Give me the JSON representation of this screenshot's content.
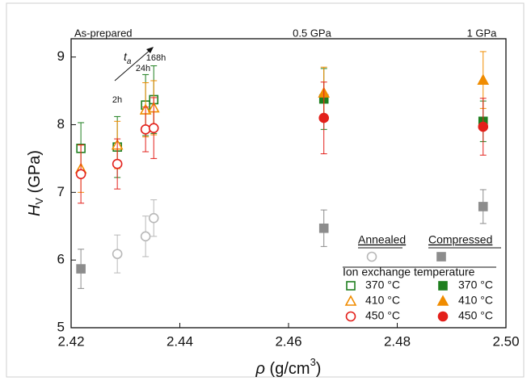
{
  "chart_data": {
    "type": "scatter",
    "x_label": {
      "symbol": "ρ",
      "text": " (g/cm",
      "sup": "3",
      "end": ")"
    },
    "y_label": {
      "symbol": "H",
      "sub": "V",
      "text": " (GPa)"
    },
    "xlim": [
      2.42,
      2.5
    ],
    "ylim": [
      5,
      9.27
    ],
    "xticks": [
      2.42,
      2.44,
      2.46,
      2.48,
      {
        "value": 2.5,
        "label": "2.50"
      }
    ],
    "yticks": [
      5,
      6,
      7,
      8,
      9
    ],
    "annotations": [
      "As-prepared",
      "0.5 GPa",
      "1 GPa",
      "2h",
      "24h",
      "168h"
    ],
    "arrow_label": {
      "text": "t",
      "sub": "a"
    },
    "legend_title": "Ion exchange temperature",
    "series": [
      {
        "name": "Annealed",
        "color": "#b8b8b8",
        "marker": "circle",
        "filled": false,
        "x": [
          2.4285,
          2.4337,
          2.4352
        ],
        "values": [
          6.09,
          6.35,
          6.62
        ],
        "errors": [
          0.28,
          0.3,
          0.27
        ]
      },
      {
        "name": "Compressed",
        "color": "#8c8c8c",
        "marker": "square",
        "filled": true,
        "x": [
          2.4218,
          2.4665,
          2.4958
        ],
        "values": [
          5.87,
          6.47,
          6.79
        ],
        "errors": [
          0.29,
          0.27,
          0.25
        ]
      },
      {
        "name": "370 °C",
        "color": "#1f7f1f",
        "marker": "square",
        "filled": false,
        "x": [
          2.4218,
          2.4285,
          2.4337,
          2.4352
        ],
        "values": [
          7.65,
          7.67,
          8.29,
          8.37
        ],
        "errors": [
          0.38,
          0.45,
          0.45,
          0.5
        ]
      },
      {
        "name": "410 °C",
        "color": "#f08c00",
        "marker": "triangle",
        "filled": false,
        "x": [
          2.4218,
          2.4285,
          2.4337,
          2.4352
        ],
        "values": [
          7.35,
          7.7,
          8.22,
          8.25
        ],
        "errors": [
          0.35,
          0.35,
          0.4,
          0.4
        ]
      },
      {
        "name": "450 °C",
        "color": "#e3201b",
        "marker": "circle",
        "filled": false,
        "x": [
          2.4218,
          2.4285,
          2.4337,
          2.4352
        ],
        "values": [
          7.27,
          7.42,
          7.93,
          7.95
        ],
        "errors": [
          0.43,
          0.37,
          0.33,
          0.45
        ]
      },
      {
        "name": "370 °C",
        "color": "#1f7f1f",
        "marker": "square",
        "filled": true,
        "x": [
          2.4665,
          2.4958
        ],
        "values": [
          8.38,
          8.05
        ],
        "errors": [
          0.45,
          0.3
        ]
      },
      {
        "name": "410 °C",
        "color": "#f08c00",
        "marker": "triangle",
        "filled": true,
        "x": [
          2.4665,
          2.4958
        ],
        "values": [
          8.47,
          8.66
        ],
        "errors": [
          0.38,
          0.42
        ]
      },
      {
        "name": "450 °C",
        "color": "#e3201b",
        "marker": "circle",
        "filled": true,
        "x": [
          2.4665,
          2.4958
        ],
        "values": [
          8.1,
          7.97
        ],
        "errors": [
          0.53,
          0.42
        ]
      }
    ]
  }
}
